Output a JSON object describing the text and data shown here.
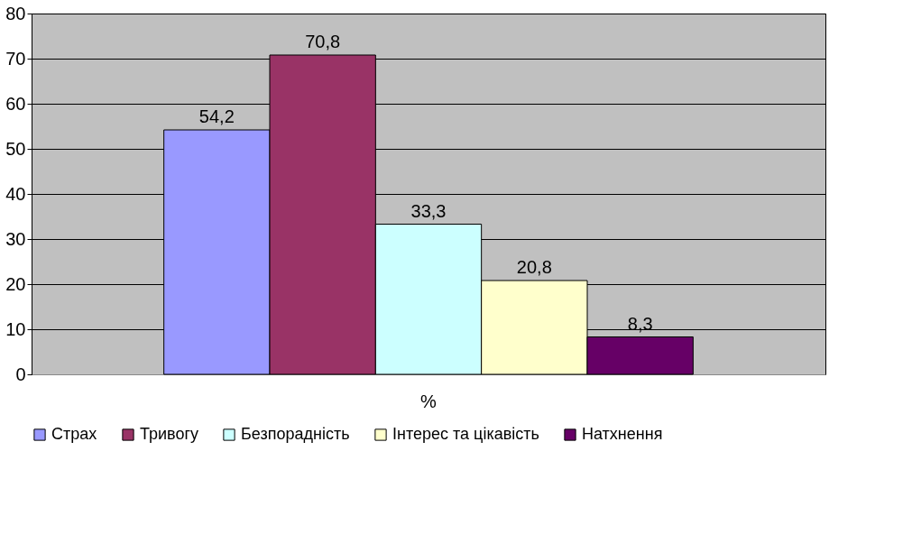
{
  "chart_data": {
    "type": "bar",
    "categories": [
      "%"
    ],
    "series": [
      {
        "name": "Страх",
        "color": "#9999ff",
        "values": [
          54.2
        ],
        "value_labels": [
          "54,2"
        ]
      },
      {
        "name": "Тривогу",
        "color": "#993366",
        "values": [
          70.8
        ],
        "value_labels": [
          "70,8"
        ]
      },
      {
        "name": "Безпорадність",
        "color": "#ccffff",
        "values": [
          33.3
        ],
        "value_labels": [
          "33,3"
        ]
      },
      {
        "name": "Інтерес та цікавість",
        "color": "#ffffcc",
        "values": [
          20.8
        ],
        "value_labels": [
          "20,8"
        ]
      },
      {
        "name": "Натхнення",
        "color": "#660066",
        "values": [
          8.3
        ],
        "value_labels": [
          "8,3"
        ]
      }
    ],
    "ylim": [
      0,
      80
    ],
    "yticks": [
      0,
      10,
      20,
      30,
      40,
      50,
      60,
      70,
      80
    ],
    "grid": "y",
    "legend": "bottom"
  }
}
